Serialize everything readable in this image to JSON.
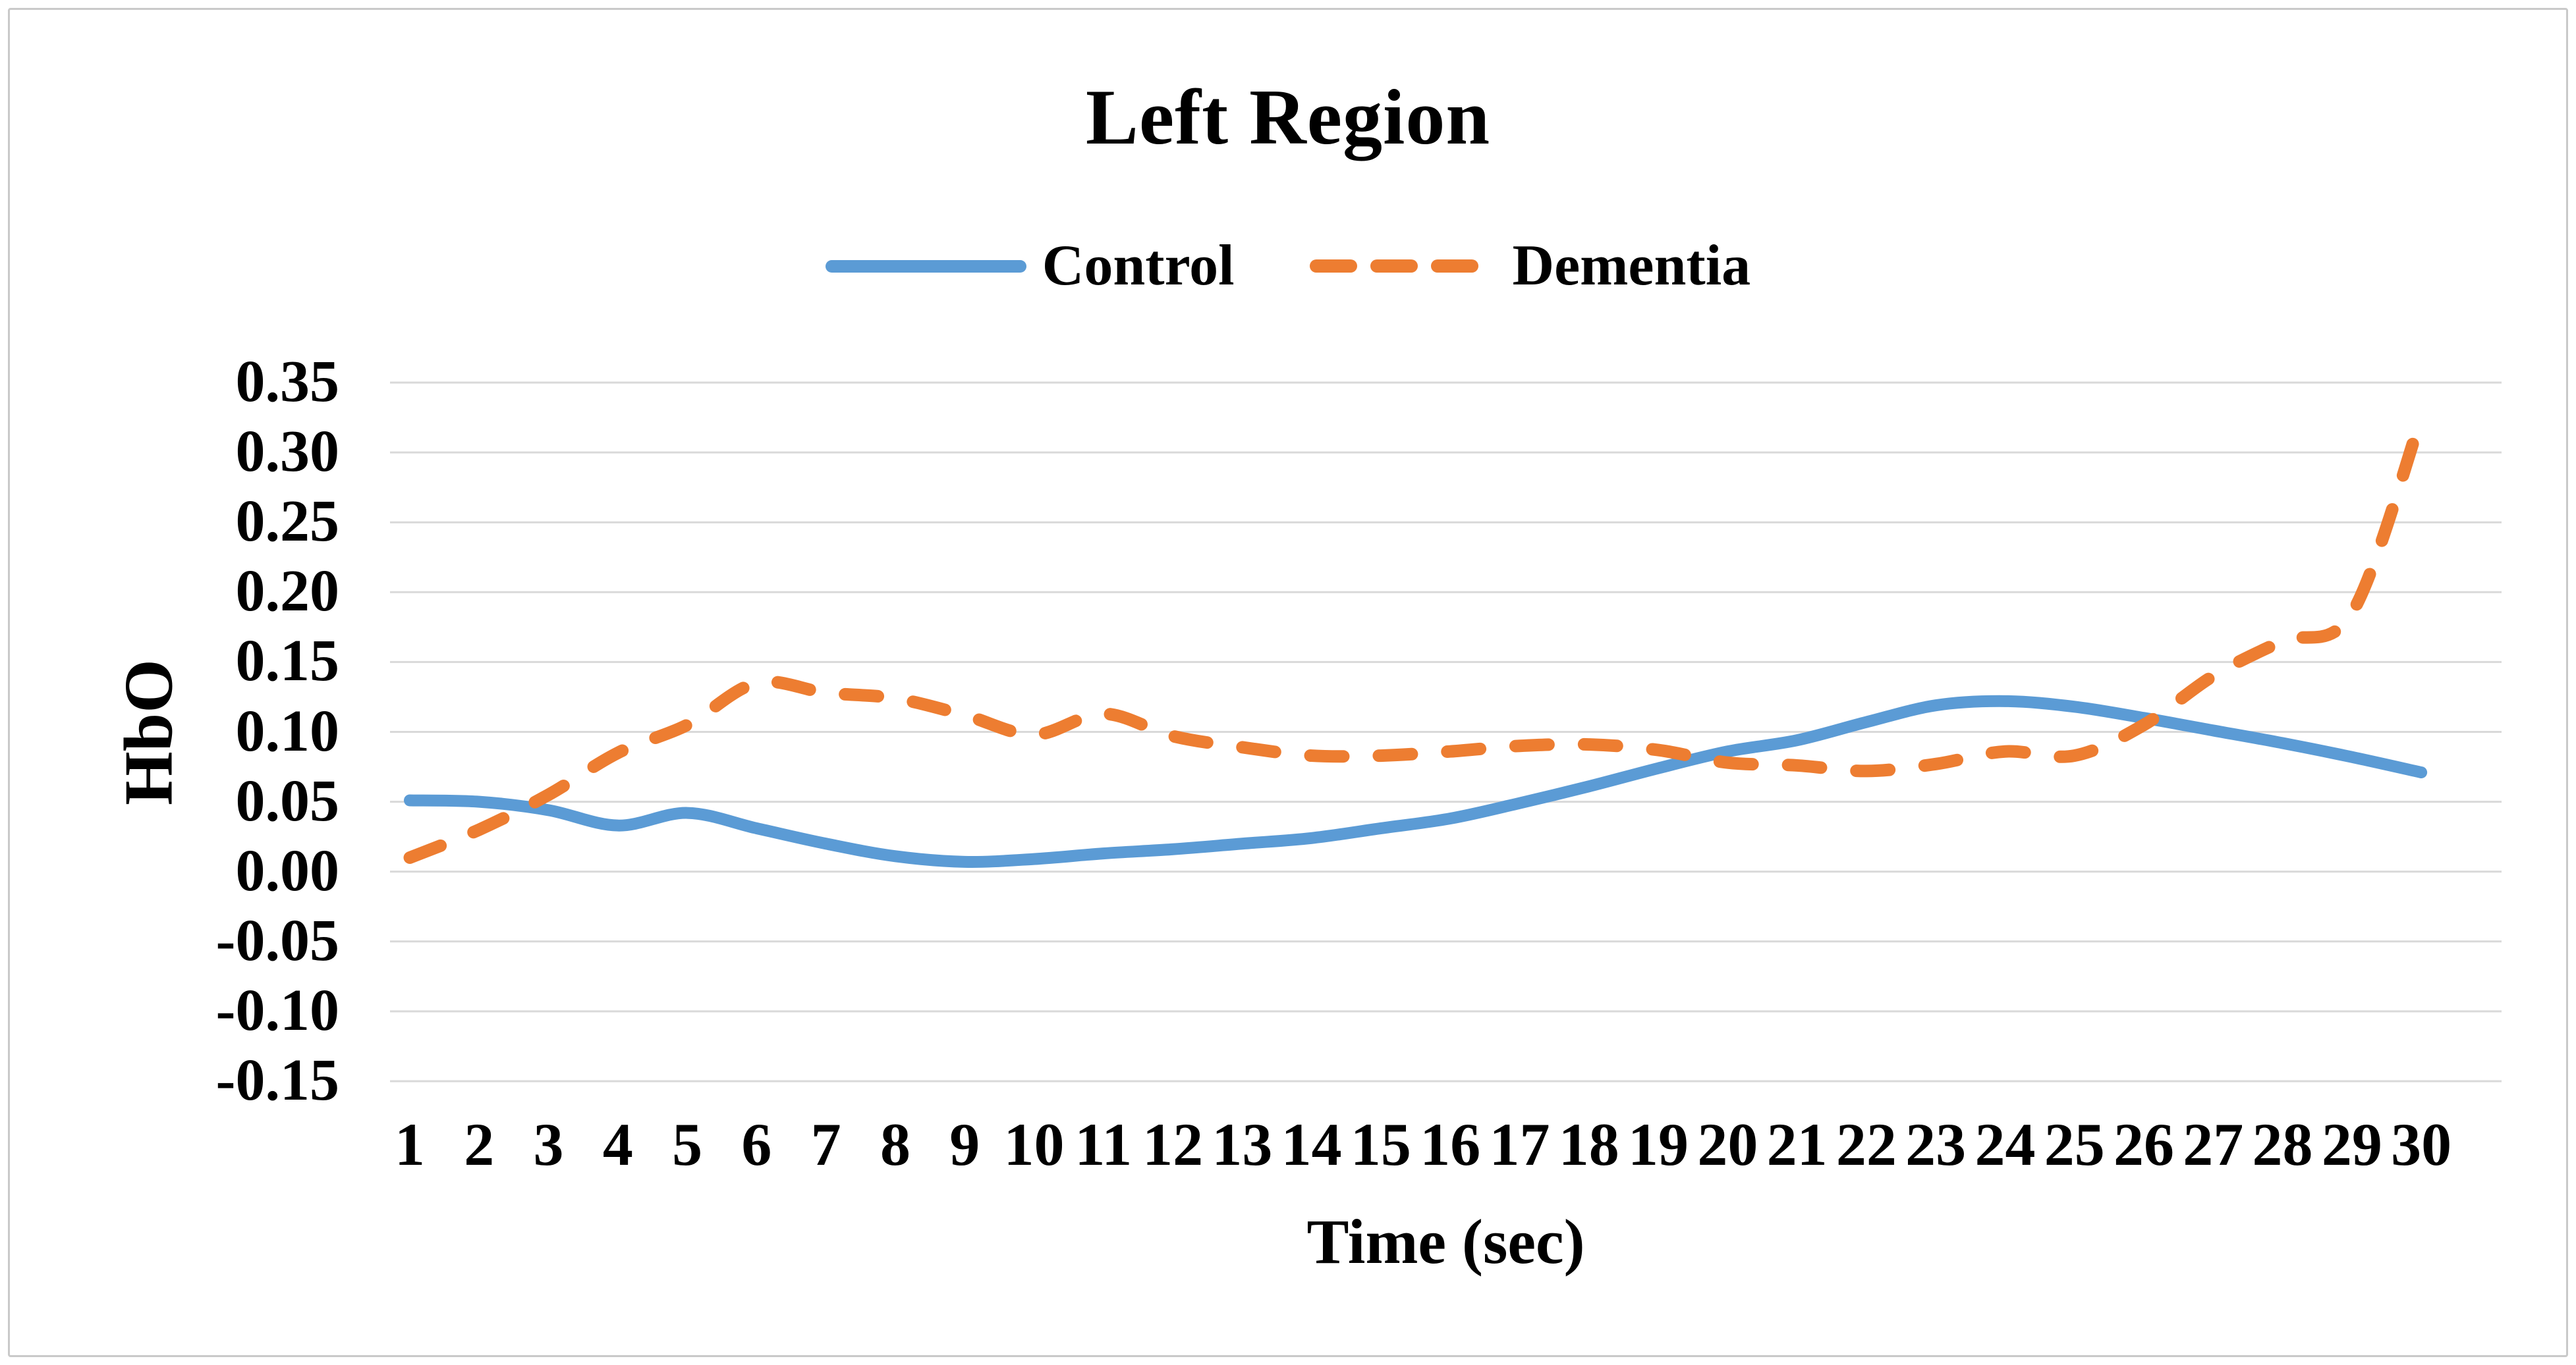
{
  "title": "Left Region",
  "legend": {
    "items": [
      {
        "label": "Control",
        "color": "#5B9BD5",
        "style": "solid"
      },
      {
        "label": "Dementia",
        "color": "#ED7D31",
        "style": "dashed"
      }
    ]
  },
  "axes": {
    "y_title": "HbO",
    "x_title": "Time (sec)",
    "y_tick_labels": [
      "0.35",
      "0.30",
      "0.25",
      "0.20",
      "0.15",
      "0.10",
      "0.05",
      "0.00",
      "-0.05",
      "-0.10",
      "-0.15"
    ],
    "x_tick_labels": [
      "1",
      "2",
      "3",
      "4",
      "5",
      "6",
      "7",
      "8",
      "9",
      "10",
      "11",
      "12",
      "13",
      "14",
      "15",
      "16",
      "17",
      "18",
      "19",
      "20",
      "21",
      "22",
      "23",
      "24",
      "25",
      "26",
      "27",
      "28",
      "29",
      "30"
    ]
  },
  "chart_data": {
    "type": "line",
    "title": "Left Region",
    "xlabel": "Time (sec)",
    "ylabel": "HbO",
    "x": [
      1,
      2,
      3,
      4,
      5,
      6,
      7,
      8,
      9,
      10,
      11,
      12,
      13,
      14,
      15,
      16,
      17,
      18,
      19,
      20,
      21,
      22,
      23,
      24,
      25,
      26,
      27,
      28,
      29,
      30
    ],
    "series": [
      {
        "name": "Control",
        "color": "#5B9BD5",
        "line_style": "solid",
        "values": [
          0.051,
          0.05,
          0.044,
          0.033,
          0.042,
          0.031,
          0.02,
          0.011,
          0.007,
          0.009,
          0.013,
          0.016,
          0.02,
          0.024,
          0.031,
          0.038,
          0.049,
          0.061,
          0.074,
          0.086,
          0.094,
          0.107,
          0.119,
          0.122,
          0.118,
          0.11,
          0.101,
          0.092,
          0.082,
          0.071
        ]
      },
      {
        "name": "Dementia",
        "color": "#ED7D31",
        "line_style": "dashed",
        "values": [
          0.01,
          0.03,
          0.055,
          0.085,
          0.105,
          0.135,
          0.128,
          0.124,
          0.112,
          0.098,
          0.113,
          0.097,
          0.089,
          0.083,
          0.083,
          0.086,
          0.09,
          0.091,
          0.087,
          0.078,
          0.076,
          0.072,
          0.077,
          0.086,
          0.083,
          0.105,
          0.14,
          0.165,
          0.185,
          0.325
        ]
      }
    ],
    "ylim": [
      -0.15,
      0.35
    ],
    "ytick_step": 0.05,
    "grid": "horizontal",
    "legend_position": "top"
  },
  "colors": {
    "grid": "#D9D9D9",
    "text": "#000000",
    "frame_border": "#C9C9C9",
    "background": "#FFFFFF"
  }
}
